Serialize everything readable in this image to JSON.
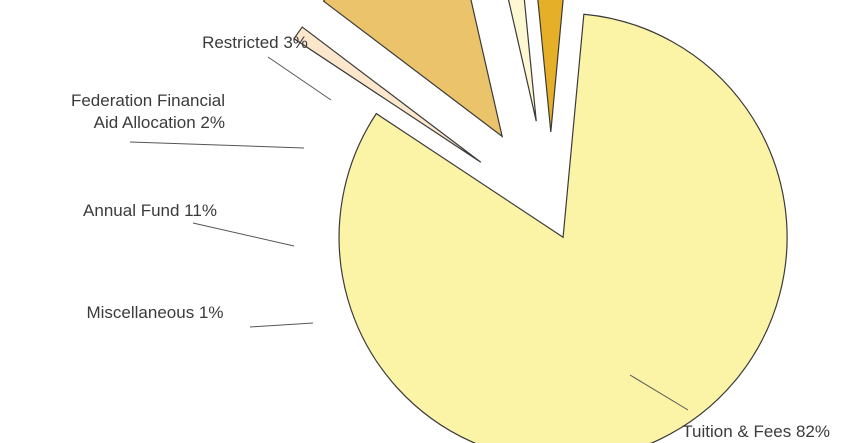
{
  "chart_data": {
    "type": "pie",
    "title": "",
    "unit": "%",
    "slices": [
      {
        "label": "Tuition & Fees 82%",
        "value": 82,
        "color": "#FBF4A6"
      },
      {
        "label": "Restricted 3%",
        "value": 3,
        "color": "#E5B027"
      },
      {
        "label": "Federation Financial Aid Allocation 2%",
        "value": 2,
        "color": "#FEF8D2"
      },
      {
        "label": "Annual Fund 11%",
        "value": 11,
        "color": "#EBC36A"
      },
      {
        "label": "Miscellaneous 1%",
        "value": 1,
        "color": "#FCE7CD"
      }
    ],
    "exploded": [
      "Restricted 3%",
      "Federation Financial Aid Allocation 2%",
      "Annual Fund 11%",
      "Miscellaneous 1%"
    ],
    "legend": "none"
  }
}
